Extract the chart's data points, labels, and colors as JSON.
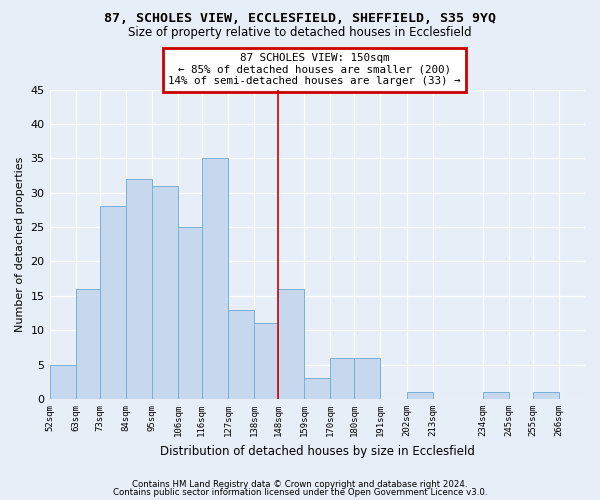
{
  "title": "87, SCHOLES VIEW, ECCLESFIELD, SHEFFIELD, S35 9YQ",
  "subtitle": "Size of property relative to detached houses in Ecclesfield",
  "xlabel": "Distribution of detached houses by size in Ecclesfield",
  "ylabel": "Number of detached properties",
  "footer_line1": "Contains HM Land Registry data © Crown copyright and database right 2024.",
  "footer_line2": "Contains public sector information licensed under the Open Government Licence v3.0.",
  "bin_labels": [
    "52sqm",
    "63sqm",
    "73sqm",
    "84sqm",
    "95sqm",
    "106sqm",
    "116sqm",
    "127sqm",
    "138sqm",
    "148sqm",
    "159sqm",
    "170sqm",
    "180sqm",
    "191sqm",
    "202sqm",
    "213sqm",
    "234sqm",
    "245sqm",
    "255sqm",
    "266sqm"
  ],
  "bar_heights": [
    5,
    16,
    28,
    32,
    31,
    25,
    35,
    13,
    11,
    16,
    3,
    6,
    6,
    0,
    1,
    0,
    1,
    0,
    1,
    0
  ],
  "bar_color": "#c5d8ee",
  "bar_edge_color": "#7aafd4",
  "annotation_text": "87 SCHOLES VIEW: 150sqm\n← 85% of detached houses are smaller (200)\n14% of semi-detached houses are larger (33) →",
  "annotation_box_facecolor": "#ffffff",
  "annotation_box_edgecolor": "#cc0000",
  "vline_color": "#cc0000",
  "ylim": [
    0,
    45
  ],
  "yticks": [
    0,
    5,
    10,
    15,
    20,
    25,
    30,
    35,
    40,
    45
  ],
  "bg_color": "#e8eef8",
  "grid_color": "#ffffff",
  "bin_edges": [
    52,
    63,
    73,
    84,
    95,
    106,
    116,
    127,
    138,
    148,
    159,
    170,
    180,
    191,
    202,
    213,
    234,
    245,
    255,
    266,
    277
  ],
  "vline_x": 148,
  "n_bins": 20
}
